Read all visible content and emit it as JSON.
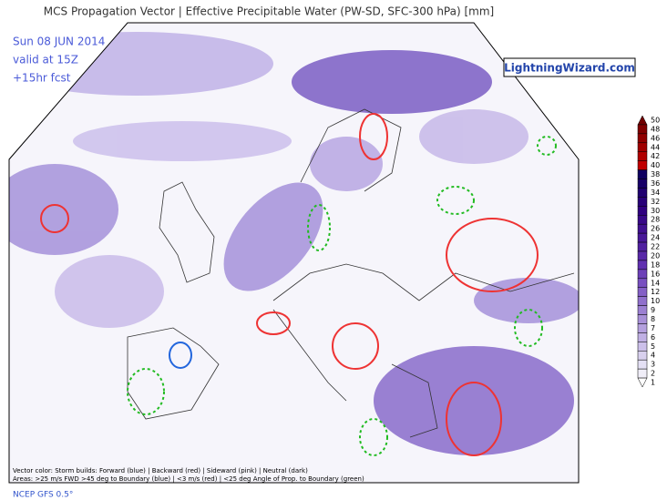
{
  "header": {
    "title": "MCS Propagation Vector | Effective Precipitable Water (PW-SD, SFC-300 hPa) [mm]",
    "date": "Sun 08 JUN 2014",
    "valid": "valid at 15Z",
    "forecast": "+15hr fcst",
    "brand": "LightningWizard.com"
  },
  "colorbar": {
    "levels": [
      50,
      48,
      46,
      44,
      42,
      40,
      38,
      36,
      34,
      32,
      30,
      28,
      26,
      24,
      22,
      20,
      18,
      16,
      14,
      12,
      10,
      9,
      8,
      7,
      6,
      5,
      4,
      3,
      2,
      1
    ],
    "colors": [
      "#700000",
      "#800000",
      "#900000",
      "#a00000",
      "#b00000",
      "#c00000",
      "#100060",
      "#180068",
      "#200070",
      "#280078",
      "#300080",
      "#380888",
      "#401090",
      "#481898",
      "#5020a0",
      "#5828a8",
      "#6030b0",
      "#6c40b8",
      "#7850c0",
      "#8460c6",
      "#9070cc",
      "#9c80d2",
      "#a890d8",
      "#b4a0de",
      "#c0b0e4",
      "#ccc0ea",
      "#d8d0ee",
      "#e4e0f4",
      "#f0eef8",
      "#ffffff"
    ]
  },
  "footer": {
    "legend1": "Vector color: Storm builds: Forward (blue) | Backward (red) | Sideward (pink) | Neutral (dark)",
    "legend2": "Areas: >25 m/s FWD >45 deg to Boundary (blue) | <3 m/s (red) | <25 deg Angle of Prop. to Boundary (green)",
    "model": "NCEP GFS 0.5°"
  }
}
